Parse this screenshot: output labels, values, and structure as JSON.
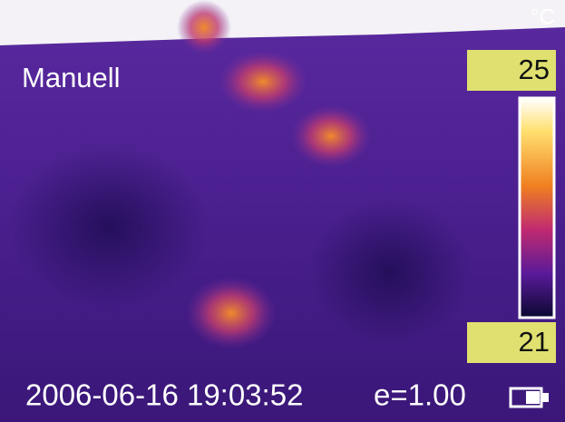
{
  "overlay": {
    "mode": "Manuell",
    "unit": "°C",
    "scale": {
      "max": 25,
      "min": 21
    },
    "timestamp": "2006-06-16 19:03:52",
    "emissivity": "e=1.00"
  }
}
